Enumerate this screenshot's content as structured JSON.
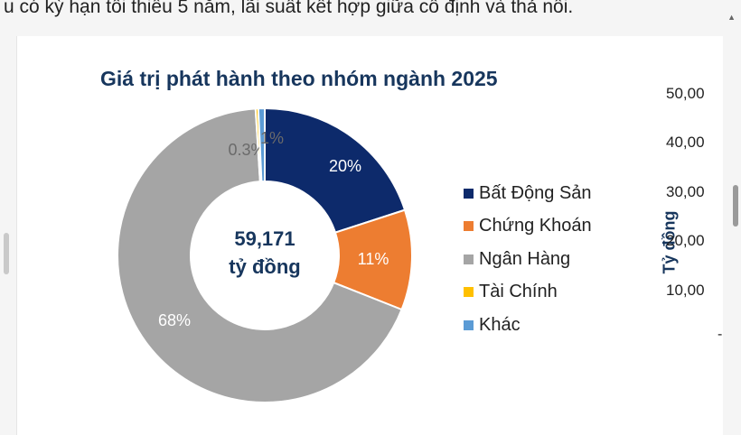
{
  "page": {
    "top_text": "u có kỳ hạn tối thiểu 5 năm, lãi suất kết hợp giữa cố định và thả nổi."
  },
  "chart_data": {
    "type": "pie",
    "variant": "donut",
    "title": "Giá trị phát hành theo nhóm ngành 2025",
    "center_value": "59,171",
    "center_unit": "tỷ đồng",
    "slices": [
      {
        "name": "Bất Động Sản",
        "value": 20,
        "label": "20%",
        "color": "#0d2a6b"
      },
      {
        "name": "Chứng Khoán",
        "value": 11,
        "label": "11%",
        "color": "#ed7d31"
      },
      {
        "name": "Ngân Hàng",
        "value": 68,
        "label": "68%",
        "color": "#a5a5a5"
      },
      {
        "name": "Tài Chính",
        "value": 0.3,
        "label": "0.3%",
        "color": "#ffc000"
      },
      {
        "name": "Khác",
        "value": 0.7,
        "label": "1%",
        "color": "#5b9bd5"
      }
    ],
    "legend_position": "right"
  },
  "side_axis": {
    "ylabel": "Tỷ đồng",
    "ticks": [
      "50,00",
      "40,00",
      "30,00",
      "20,00",
      "10,00",
      "-"
    ]
  },
  "icons": {
    "scroll_up": "chevron-up-icon"
  }
}
